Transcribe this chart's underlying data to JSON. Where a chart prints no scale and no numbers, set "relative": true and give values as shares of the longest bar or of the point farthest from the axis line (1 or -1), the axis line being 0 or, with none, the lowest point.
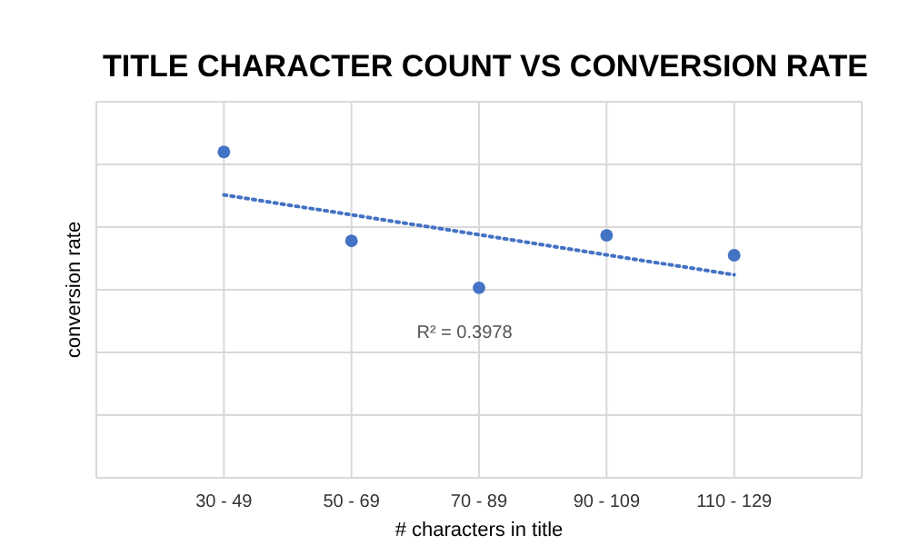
{
  "chart_data": {
    "type": "scatter",
    "title": "TITLE CHARACTER COUNT VS CONVERSION RATE",
    "xlabel": "# characters in title",
    "ylabel": "conversion rate",
    "categories": [
      "30 - 49",
      "50 - 69",
      "70 - 89",
      "90 - 109",
      "110 - 129"
    ],
    "relative": true,
    "grid": true,
    "marker": "circle",
    "series": [
      {
        "color": "#4472c4",
        "values": [
          1,
          0.727,
          0.583,
          0.744,
          0.683
        ]
      },
      {
        "type": "line",
        "color": "#4472c4",
        "line_style": "dotted",
        "marker": "none",
        "values": [
          0.868,
          0.807,
          0.746,
          0.684,
          0.623
        ]
      }
    ],
    "annotations": [
      "R² = 0.3978"
    ]
  }
}
